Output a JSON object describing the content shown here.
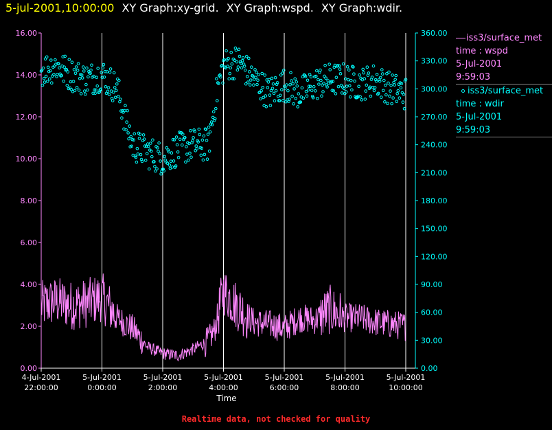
{
  "header": {
    "time": "5-jul-2001,10:00:00",
    "titles": [
      "XY Graph:xy-grid.",
      "XY Graph:wspd.",
      "XY Graph:wdir."
    ]
  },
  "legend": [
    {
      "symbol": "line",
      "lines": [
        "iss3/surface_met",
        "time : wspd",
        "5-Jul-2001",
        "9:59:03"
      ]
    },
    {
      "symbol": "circle",
      "lines": [
        "iss3/surface_met",
        "time : wdir",
        "5-Jul-2001",
        "9:59:03"
      ]
    }
  ],
  "footer": "Realtime data, not checked for quality",
  "colors": {
    "wspd": "#ff88ff",
    "wdir": "#00ffff",
    "left_axis": "#ff88ff",
    "right_axis": "#00ffff",
    "grid": "#ffffff"
  },
  "chart_data": {
    "type": "line+scatter",
    "xlabel": "Time",
    "x_range_hours": [
      0,
      12
    ],
    "x_ticks": [
      {
        "h": 0,
        "l1": "4-Jul-2001",
        "l2": "22:00:00"
      },
      {
        "h": 2,
        "l1": "5-Jul-2001",
        "l2": "0:00:00"
      },
      {
        "h": 4,
        "l1": "5-Jul-2001",
        "l2": "2:00:00"
      },
      {
        "h": 6,
        "l1": "5-Jul-2001",
        "l2": "4:00:00"
      },
      {
        "h": 8,
        "l1": "5-Jul-2001",
        "l2": "6:00:00"
      },
      {
        "h": 10,
        "l1": "5-Jul-2001",
        "l2": "8:00:00"
      },
      {
        "h": 12,
        "l1": "5-Jul-2001",
        "l2": "10:00:00"
      }
    ],
    "y_left": {
      "min": 0,
      "max": 16,
      "ticks": [
        "0.00",
        "2.00",
        "4.00",
        "6.00",
        "8.00",
        "10.00",
        "12.00",
        "14.00",
        "16.00"
      ]
    },
    "y_right": {
      "min": 0,
      "max": 360,
      "ticks": [
        "0.00",
        "30.00",
        "60.00",
        "90.00",
        "120.00",
        "150.00",
        "180.00",
        "210.00",
        "240.00",
        "270.00",
        "300.00",
        "330.00",
        "360.00"
      ]
    },
    "series": [
      {
        "name": "wspd",
        "axis": "left",
        "style": "line",
        "x": [
          0,
          0.5,
          1,
          1.5,
          2,
          2.5,
          3,
          3.5,
          4,
          4.5,
          5,
          5.5,
          5.7,
          6,
          6.5,
          7,
          7.5,
          8,
          8.5,
          9,
          9.5,
          10,
          10.5,
          11,
          11.5,
          12
        ],
        "y": [
          3.0,
          3.2,
          3.0,
          3.1,
          3.4,
          2.4,
          1.9,
          1.0,
          0.7,
          0.6,
          0.9,
          1.3,
          1.8,
          3.7,
          2.9,
          2.2,
          2.1,
          1.9,
          2.4,
          2.3,
          2.8,
          2.4,
          2.4,
          2.2,
          2.1,
          2.0
        ]
      },
      {
        "name": "wdir",
        "axis": "right",
        "style": "circle",
        "x": [
          0,
          0.5,
          1,
          1.5,
          2,
          2.5,
          3,
          3.5,
          4,
          4.5,
          5,
          5.5,
          5.8,
          6,
          6.5,
          7,
          7.5,
          8,
          8.5,
          9,
          9.5,
          10,
          10.5,
          11,
          11.5,
          12
        ],
        "y": [
          320,
          325,
          315,
          310,
          315,
          300,
          240,
          232,
          225,
          235,
          240,
          240,
          300,
          325,
          330,
          310,
          295,
          305,
          295,
          305,
          310,
          310,
          305,
          310,
          300,
          295
        ]
      }
    ]
  }
}
